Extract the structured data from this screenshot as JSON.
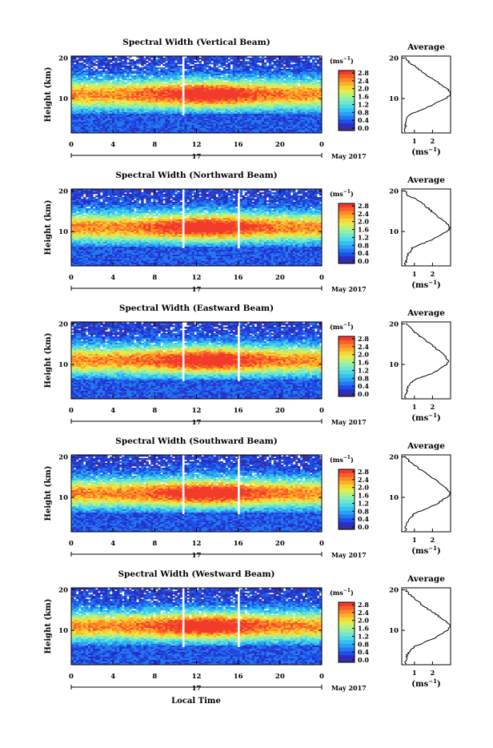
{
  "figure": {
    "xlabel": "Local Time",
    "date_label": "May 2017",
    "day_label": "17"
  },
  "colorbar": {
    "unit": "(ms",
    "unit_exp": "−1",
    "unit_close": ")",
    "tick_labels": [
      "2.8",
      "2.4",
      "2.0",
      "1.6",
      "1.2",
      "0.8",
      "0.4",
      "0.0"
    ],
    "colors": [
      "#3d2d97",
      "#2630c8",
      "#1f4ee6",
      "#2478ef",
      "#2aa0f2",
      "#33c2f0",
      "#4fd9e6",
      "#6fe6cf",
      "#8ff0a9",
      "#b8f27c",
      "#e1ee52",
      "#f6d735",
      "#fdb02a",
      "#fd8a26",
      "#f8602a",
      "#f23b2a"
    ]
  },
  "average_panel": {
    "title": "Average",
    "unit": "(ms",
    "unit_exp": "−1",
    "unit_close": ")"
  },
  "chart_data": [
    {
      "type": "heatmap",
      "title": "Spectral Width (Vertical Beam)",
      "xlabel": "Local Time",
      "ylabel": "Height (km)",
      "x_ticks": [
        "0",
        "4",
        "8",
        "12",
        "16",
        "20",
        "0"
      ],
      "y_ticks": [
        "20",
        "10"
      ],
      "xlim": [
        0,
        24
      ],
      "ylim": [
        1.5,
        20.5
      ],
      "zlim": [
        0.0,
        3.0
      ],
      "core_peak_height_km": 11,
      "data_gap_hours": [
        10.6,
        10.9
      ],
      "average_profile": {
        "x_ticks": [
          "1",
          "2"
        ],
        "xlim": [
          0.3,
          3.0
        ],
        "heights_km": [
          2,
          4,
          6,
          8,
          10,
          11,
          12,
          14,
          16,
          18,
          19,
          20
        ],
        "values": [
          0.5,
          0.5,
          0.7,
          1.8,
          2.7,
          3.0,
          2.9,
          2.3,
          1.6,
          1.0,
          0.7,
          0.5
        ]
      }
    },
    {
      "type": "heatmap",
      "title": "Spectral Width (Northward Beam)",
      "xlabel": "Local Time",
      "ylabel": "Height (km)",
      "x_ticks": [
        "0",
        "4",
        "8",
        "12",
        "16",
        "20",
        "0"
      ],
      "y_ticks": [
        "20",
        "10"
      ],
      "xlim": [
        0,
        24
      ],
      "ylim": [
        1.5,
        20.5
      ],
      "zlim": [
        0.0,
        3.0
      ],
      "core_peak_height_km": 11,
      "data_gap_hours": [
        10.6,
        10.9,
        15.9,
        16.1
      ],
      "average_profile": {
        "x_ticks": [
          "1",
          "2"
        ],
        "xlim": [
          0.3,
          3.0
        ],
        "heights_km": [
          2,
          4,
          6,
          8,
          10,
          11,
          12,
          14,
          16,
          18,
          19,
          20
        ],
        "values": [
          0.5,
          0.6,
          0.9,
          2.0,
          2.8,
          3.0,
          2.8,
          2.2,
          1.7,
          1.1,
          0.6,
          0.5
        ]
      }
    },
    {
      "type": "heatmap",
      "title": "Spectral Width (Eastward Beam)",
      "xlabel": "Local Time",
      "ylabel": "Height (km)",
      "x_ticks": [
        "0",
        "4",
        "8",
        "12",
        "16",
        "20",
        "0"
      ],
      "y_ticks": [
        "20",
        "10"
      ],
      "xlim": [
        0,
        24
      ],
      "ylim": [
        1.5,
        20.5
      ],
      "zlim": [
        0.0,
        3.0
      ],
      "core_peak_height_km": 11,
      "data_gap_hours": [
        10.6,
        10.9,
        15.9,
        16.1
      ],
      "average_profile": {
        "x_ticks": [
          "1",
          "2"
        ],
        "xlim": [
          0.3,
          3.0
        ],
        "heights_km": [
          2,
          4,
          6,
          8,
          10,
          11,
          12,
          14,
          16,
          18,
          19,
          20
        ],
        "values": [
          0.5,
          0.6,
          0.9,
          2.1,
          2.8,
          2.9,
          2.7,
          2.2,
          1.6,
          1.0,
          0.8,
          0.6
        ]
      }
    },
    {
      "type": "heatmap",
      "title": "Spectral Width (Southward Beam)",
      "xlabel": "Local Time",
      "ylabel": "Height (km)",
      "x_ticks": [
        "0",
        "4",
        "8",
        "12",
        "16",
        "20",
        "0"
      ],
      "y_ticks": [
        "20",
        "10"
      ],
      "xlim": [
        0,
        24
      ],
      "ylim": [
        1.5,
        20.5
      ],
      "zlim": [
        0.0,
        3.0
      ],
      "core_peak_height_km": 11,
      "data_gap_hours": [
        10.6,
        10.9,
        15.9,
        16.1
      ],
      "average_profile": {
        "x_ticks": [
          "1",
          "2"
        ],
        "xlim": [
          0.3,
          3.0
        ],
        "heights_km": [
          2,
          4,
          6,
          8,
          10,
          11,
          12,
          14,
          16,
          18,
          19,
          20
        ],
        "values": [
          0.5,
          0.6,
          1.0,
          2.1,
          2.8,
          3.0,
          2.8,
          2.3,
          1.6,
          1.0,
          0.7,
          0.5
        ]
      }
    },
    {
      "type": "heatmap",
      "title": "Spectral Width (Westward Beam)",
      "xlabel": "Local Time",
      "ylabel": "Height (km)",
      "x_ticks": [
        "0",
        "4",
        "8",
        "12",
        "16",
        "20",
        "0"
      ],
      "y_ticks": [
        "20",
        "10"
      ],
      "xlim": [
        0,
        24
      ],
      "ylim": [
        1.5,
        20.5
      ],
      "zlim": [
        0.0,
        3.0
      ],
      "core_peak_height_km": 11,
      "data_gap_hours": [
        10.6,
        10.9,
        15.9,
        16.1
      ],
      "average_profile": {
        "x_ticks": [
          "1",
          "2"
        ],
        "xlim": [
          0.3,
          3.0
        ],
        "heights_km": [
          2,
          4,
          6,
          8,
          10,
          11,
          12,
          14,
          16,
          18,
          19,
          20
        ],
        "values": [
          0.5,
          0.6,
          1.0,
          2.1,
          2.8,
          3.0,
          2.8,
          2.2,
          1.5,
          1.0,
          0.7,
          0.5
        ]
      }
    }
  ]
}
